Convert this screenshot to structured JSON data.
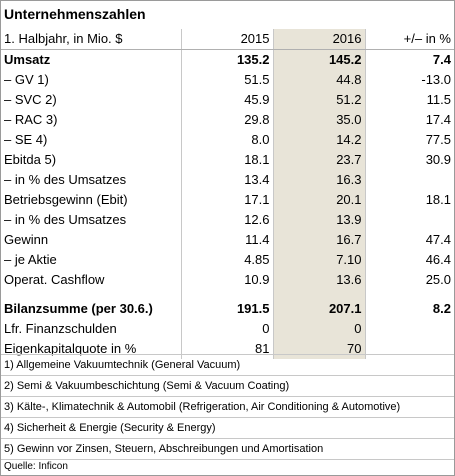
{
  "title": "Unternehmenszahlen",
  "header": {
    "label": "1. Halbjahr, in Mio. $",
    "col1": "2015",
    "col2": "2016",
    "col3": "+/– in %"
  },
  "rows": [
    {
      "label": "Umsatz",
      "v2015": "135.2",
      "v2016": "145.2",
      "change": "7.4",
      "bold": true
    },
    {
      "label": "– GV 1)",
      "v2015": "51.5",
      "v2016": "44.8",
      "change": "-13.0"
    },
    {
      "label": "– SVC 2)",
      "v2015": "45.9",
      "v2016": "51.2",
      "change": "11.5"
    },
    {
      "label": "– RAC 3)",
      "v2015": "29.8",
      "v2016": "35.0",
      "change": "17.4"
    },
    {
      "label": "– SE 4)",
      "v2015": "8.0",
      "v2016": "14.2",
      "change": "77.5"
    },
    {
      "label": "Ebitda 5)",
      "v2015": "18.1",
      "v2016": "23.7",
      "change": "30.9"
    },
    {
      "label": "– in % des Umsatzes",
      "v2015": "13.4",
      "v2016": "16.3",
      "change": ""
    },
    {
      "label": "Betriebsgewinn (Ebit)",
      "v2015": "17.1",
      "v2016": "20.1",
      "change": "18.1"
    },
    {
      "label": "– in % des Umsatzes",
      "v2015": "12.6",
      "v2016": "13.9",
      "change": ""
    },
    {
      "label": "Gewinn",
      "v2015": "11.4",
      "v2016": "16.7",
      "change": "47.4"
    },
    {
      "label": "– je Aktie",
      "v2015": "4.85",
      "v2016": "7.10",
      "change": "46.4"
    },
    {
      "label": "Operat. Cashflow",
      "v2015": "10.9",
      "v2016": "13.6",
      "change": "25.0"
    }
  ],
  "balance_rows": [
    {
      "label": "Bilanzsumme (per 30.6.)",
      "v2015": "191.5",
      "v2016": "207.1",
      "change": "8.2",
      "bold": true
    },
    {
      "label": "Lfr. Finanzschulden",
      "v2015": "0",
      "v2016": "0",
      "change": ""
    },
    {
      "label": "Eigenkapitalquote in %",
      "v2015": "81",
      "v2016": "70",
      "change": ""
    }
  ],
  "footnotes": [
    "1) Allgemeine Vakuumtechnik (General Vacuum)",
    "2) Semi & Vakuumbeschichtung (Semi & Vacuum Coating)",
    "3) Kälte-, Klimatechnik & Automobil (Refrigeration, Air Conditioning & Automotive)",
    "4) Sicherheit & Energie (Security & Energy)",
    "5) Gewinn vor Zinsen, Steuern, Abschreibungen und Amortisation"
  ],
  "source": "Quelle: Inficon",
  "colors": {
    "highlight_column": "#e8e4d8",
    "grid": "#c8c8c8"
  }
}
